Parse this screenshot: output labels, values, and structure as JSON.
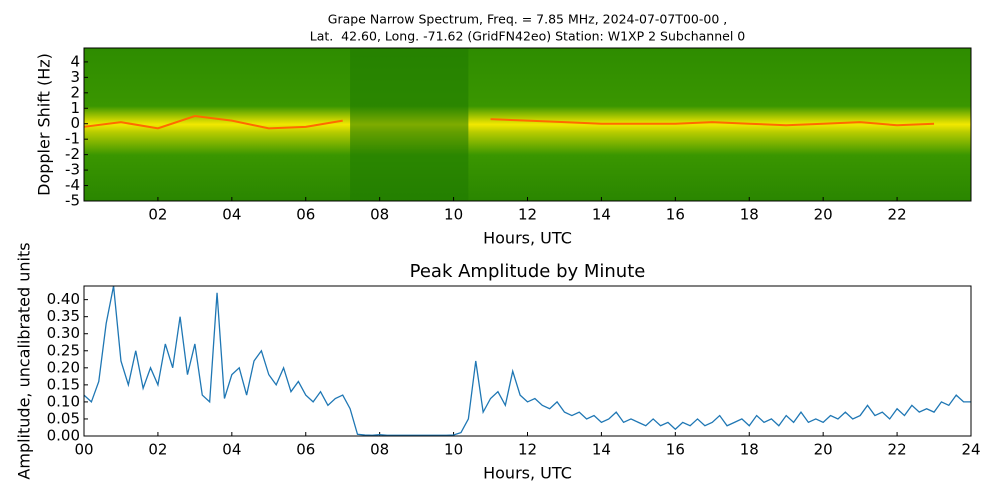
{
  "chart_data": [
    {
      "type": "spectrogram",
      "title": [
        "Grape Narrow Spectrum, Freq. = 7.85 MHz, 2024-07-07T00-00 ,",
        "Lat.  42.60, Long. -71.62 (GridFN42eo) Station: W1XP 2 Subchannel 0"
      ],
      "xlabel": "Hours, UTC",
      "ylabel": "Doppler Shift (Hz)",
      "x": [
        0,
        1,
        2,
        3,
        4,
        5,
        6,
        7,
        8,
        9,
        10,
        11,
        12,
        13,
        14,
        15,
        16,
        17,
        18,
        19,
        20,
        21,
        22,
        23
      ],
      "values": [
        -0.2,
        0.1,
        -0.3,
        0.5,
        0.2,
        -0.3,
        -0.2,
        0.2,
        null,
        null,
        null,
        0.3,
        0.2,
        0.1,
        0,
        0,
        0,
        0.1,
        0,
        -0.1,
        0,
        0.1,
        -0.1,
        0
      ],
      "color": "#ff6a00",
      "xlim": [
        0,
        24
      ],
      "ylim": [
        -5,
        4.9
      ],
      "xticks": [
        {
          "value": 2,
          "label": "02"
        },
        {
          "value": 4,
          "label": "04"
        },
        {
          "value": 6,
          "label": "06"
        },
        {
          "value": 8,
          "label": "08"
        },
        {
          "value": 10,
          "label": "10"
        },
        {
          "value": 12,
          "label": "12"
        },
        {
          "value": 14,
          "label": "14"
        },
        {
          "value": 16,
          "label": "16"
        },
        {
          "value": 18,
          "label": "18"
        },
        {
          "value": 20,
          "label": "20"
        },
        {
          "value": 22,
          "label": "22"
        }
      ],
      "yticks": [
        -5,
        -4,
        -3,
        -2,
        -1,
        0,
        1,
        2,
        3,
        4
      ]
    },
    {
      "type": "line",
      "title": "Peak Amplitude by Minute",
      "xlabel": "Hours, UTC",
      "ylabel": "Amplitude, uncalibrated units",
      "color": "#1f77b4",
      "x": [
        0,
        0.2,
        0.4,
        0.6,
        0.8,
        1,
        1.2,
        1.4,
        1.6,
        1.8,
        2,
        2.2,
        2.4,
        2.6,
        2.8,
        3,
        3.2,
        3.4,
        3.6,
        3.8,
        4,
        4.2,
        4.4,
        4.6,
        4.8,
        5,
        5.2,
        5.4,
        5.6,
        5.8,
        6,
        6.2,
        6.4,
        6.6,
        6.8,
        7,
        7.2,
        7.4,
        7.6,
        7.8,
        8,
        8.2,
        8.4,
        8.6,
        8.8,
        9,
        9.2,
        9.4,
        9.6,
        9.8,
        10,
        10.2,
        10.4,
        10.6,
        10.8,
        11,
        11.2,
        11.4,
        11.6,
        11.8,
        12,
        12.2,
        12.4,
        12.6,
        12.8,
        13,
        13.2,
        13.4,
        13.6,
        13.8,
        14,
        14.2,
        14.4,
        14.6,
        14.8,
        15,
        15.2,
        15.4,
        15.6,
        15.8,
        16,
        16.2,
        16.4,
        16.6,
        16.8,
        17,
        17.2,
        17.4,
        17.6,
        17.8,
        18,
        18.2,
        18.4,
        18.6,
        18.8,
        19,
        19.2,
        19.4,
        19.6,
        19.8,
        20,
        20.2,
        20.4,
        20.6,
        20.8,
        21,
        21.2,
        21.4,
        21.6,
        21.8,
        22,
        22.2,
        22.4,
        22.6,
        22.8,
        23,
        23.2,
        23.4,
        23.6,
        23.8,
        24
      ],
      "values": [
        0.12,
        0.1,
        0.16,
        0.33,
        0.44,
        0.22,
        0.15,
        0.25,
        0.14,
        0.2,
        0.15,
        0.27,
        0.2,
        0.35,
        0.18,
        0.27,
        0.12,
        0.1,
        0.42,
        0.11,
        0.18,
        0.2,
        0.12,
        0.22,
        0.25,
        0.18,
        0.15,
        0.2,
        0.13,
        0.16,
        0.12,
        0.1,
        0.13,
        0.09,
        0.11,
        0.12,
        0.08,
        0.005,
        0.003,
        0.002,
        0.004,
        0.002,
        0.002,
        0.002,
        0.002,
        0.002,
        0.002,
        0.002,
        0.002,
        0.002,
        0.003,
        0.01,
        0.05,
        0.22,
        0.07,
        0.11,
        0.13,
        0.09,
        0.19,
        0.12,
        0.1,
        0.11,
        0.09,
        0.08,
        0.1,
        0.07,
        0.06,
        0.07,
        0.05,
        0.06,
        0.04,
        0.05,
        0.07,
        0.04,
        0.05,
        0.04,
        0.03,
        0.05,
        0.03,
        0.04,
        0.02,
        0.04,
        0.03,
        0.05,
        0.03,
        0.04,
        0.06,
        0.03,
        0.04,
        0.05,
        0.03,
        0.06,
        0.04,
        0.05,
        0.03,
        0.06,
        0.04,
        0.07,
        0.04,
        0.05,
        0.04,
        0.06,
        0.05,
        0.07,
        0.05,
        0.06,
        0.09,
        0.06,
        0.07,
        0.05,
        0.08,
        0.06,
        0.09,
        0.07,
        0.08,
        0.07,
        0.1,
        0.09,
        0.12,
        0.1,
        0.1
      ],
      "xlim": [
        0,
        24
      ],
      "ylim": [
        0,
        0.44
      ],
      "xticks": [
        {
          "value": 0,
          "label": "00"
        },
        {
          "value": 2,
          "label": "02"
        },
        {
          "value": 4,
          "label": "04"
        },
        {
          "value": 6,
          "label": "06"
        },
        {
          "value": 8,
          "label": "08"
        },
        {
          "value": 10,
          "label": "10"
        },
        {
          "value": 12,
          "label": "12"
        },
        {
          "value": 14,
          "label": "14"
        },
        {
          "value": 16,
          "label": "16"
        },
        {
          "value": 18,
          "label": "18"
        },
        {
          "value": 20,
          "label": "20"
        },
        {
          "value": 22,
          "label": "22"
        },
        {
          "value": 24,
          "label": "24"
        }
      ],
      "yticks": [
        {
          "value": 0,
          "label": "0.00"
        },
        0.05,
        {
          "value": 0.1,
          "label": "0.10"
        },
        0.15,
        {
          "value": 0.2,
          "label": "0.20"
        },
        0.25,
        {
          "value": 0.3,
          "label": "0.30"
        },
        0.35,
        {
          "value": 0.4,
          "label": "0.40"
        }
      ]
    }
  ]
}
